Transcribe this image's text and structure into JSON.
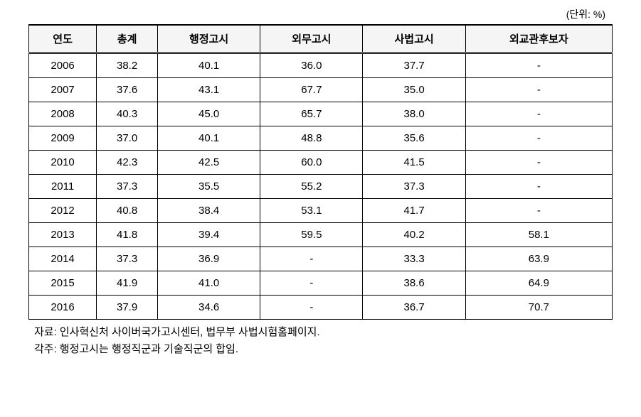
{
  "unit_label": "(단위: %)",
  "table": {
    "columns": [
      "연도",
      "총계",
      "행정고시",
      "외무고시",
      "사법고시",
      "외교관후보자"
    ],
    "column_widths": [
      "16%",
      "16%",
      "17%",
      "17%",
      "17%",
      "17%"
    ],
    "rows": [
      [
        "2006",
        "38.2",
        "40.1",
        "36.0",
        "37.7",
        "-"
      ],
      [
        "2007",
        "37.6",
        "43.1",
        "67.7",
        "35.0",
        "-"
      ],
      [
        "2008",
        "40.3",
        "45.0",
        "65.7",
        "38.0",
        "-"
      ],
      [
        "2009",
        "37.0",
        "40.1",
        "48.8",
        "35.6",
        "-"
      ],
      [
        "2010",
        "42.3",
        "42.5",
        "60.0",
        "41.5",
        "-"
      ],
      [
        "2011",
        "37.3",
        "35.5",
        "55.2",
        "37.3",
        "-"
      ],
      [
        "2012",
        "40.8",
        "38.4",
        "53.1",
        "41.7",
        "-"
      ],
      [
        "2013",
        "41.8",
        "39.4",
        "59.5",
        "40.2",
        "58.1"
      ],
      [
        "2014",
        "37.3",
        "36.9",
        "-",
        "33.3",
        "63.9"
      ],
      [
        "2015",
        "41.9",
        "41.0",
        "-",
        "38.6",
        "64.9"
      ],
      [
        "2016",
        "37.9",
        "34.6",
        "-",
        "36.7",
        "70.7"
      ]
    ],
    "header_bg": "#f5f5f5",
    "border_color": "#000000",
    "font_size": 15
  },
  "footnotes": {
    "source_label": "자료:",
    "source_text": "인사혁신처 사이버국가고시센터, 법무부 사법시험홈페이지.",
    "note_label": "각주:",
    "note_text": "행정고시는 행정직군과 기술직군의 합임."
  }
}
